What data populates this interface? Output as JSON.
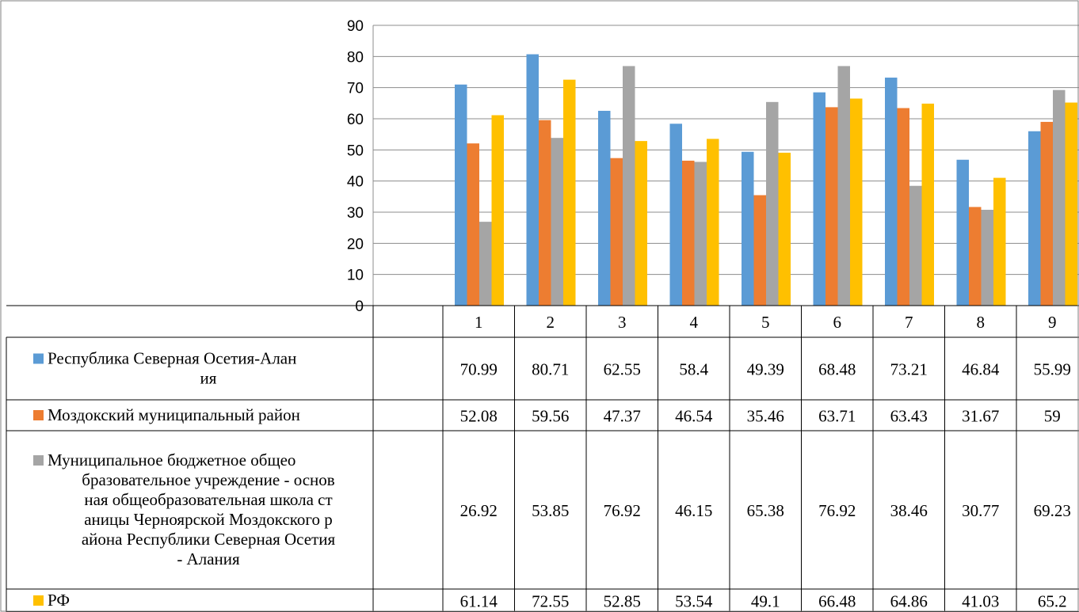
{
  "chart_data": {
    "type": "bar",
    "title": "",
    "xlabel": "",
    "ylabel": "",
    "ylim": [
      0,
      90
    ],
    "yticks": [
      0,
      10,
      20,
      30,
      40,
      50,
      60,
      70,
      80,
      90
    ],
    "grid": true,
    "legend": "table-left",
    "categories": [
      "1",
      "2",
      "3",
      "4",
      "5",
      "6",
      "7",
      "8",
      "9"
    ],
    "series": [
      {
        "name": "Республика Северная Осетия-Алания",
        "name_lines": [
          "Республика Северная Осетия-Алан",
          "ия"
        ],
        "color": "#5B9BD5",
        "values": [
          70.99,
          80.71,
          62.55,
          58.4,
          49.39,
          68.48,
          73.21,
          46.84,
          55.99
        ],
        "labels": [
          "70.99",
          "80.71",
          "62.55",
          "58.4",
          "49.39",
          "68.48",
          "73.21",
          "46.84",
          "55.99"
        ]
      },
      {
        "name": "Моздокский муниципальный район",
        "name_lines": [
          "Моздокский муниципальный район"
        ],
        "color": "#ED7D31",
        "values": [
          52.08,
          59.56,
          47.37,
          46.54,
          35.46,
          63.71,
          63.43,
          31.67,
          59
        ],
        "labels": [
          "52.08",
          "59.56",
          "47.37",
          "46.54",
          "35.46",
          "63.71",
          "63.43",
          "31.67",
          "59"
        ]
      },
      {
        "name": "Муниципальное бюджетное общеобразовательное учреждение - основная общеобразовательная школа станицы Черноярской Моздокского района Республики Северная Осетия - Алания",
        "name_lines": [
          "Муниципальное бюджетное общео",
          "бразовательное учреждение - основ",
          "ная общеобразовательная школа ст",
          "аницы Черноярской Моздокского р",
          "айона Республики Северная Осетия",
          "- Алания"
        ],
        "color": "#A5A5A5",
        "values": [
          26.92,
          53.85,
          76.92,
          46.15,
          65.38,
          76.92,
          38.46,
          30.77,
          69.23
        ],
        "labels": [
          "26.92",
          "53.85",
          "76.92",
          "46.15",
          "65.38",
          "76.92",
          "38.46",
          "30.77",
          "69.23"
        ]
      },
      {
        "name": "РФ",
        "name_lines": [
          "РФ"
        ],
        "color": "#FFC000",
        "values": [
          61.14,
          72.55,
          52.85,
          53.54,
          49.1,
          66.48,
          64.86,
          41.03,
          65.2
        ],
        "labels": [
          "61.14",
          "72.55",
          "52.85",
          "53.54",
          "49.1",
          "66.48",
          "64.86",
          "41.03",
          "65.2"
        ]
      }
    ]
  }
}
